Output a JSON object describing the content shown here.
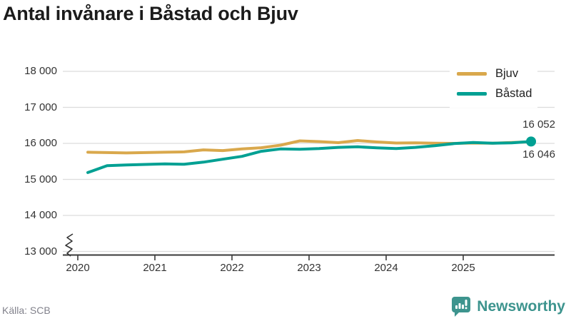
{
  "title": "Antal invånare i Båstad och Bjuv",
  "source": "Källa: SCB",
  "brand": {
    "name": "Newsworthy",
    "color": "#3d948e",
    "icon": "newsworthy-speech-bubble-chart-icon"
  },
  "colors": {
    "bjuv": "#d9a84c",
    "bastad": "#00a093",
    "grid": "#dcdcdc",
    "axis": "#3a3a3a",
    "text": "#333333",
    "title": "#1b1b1b",
    "source_text": "#82828c"
  },
  "chart_data": {
    "type": "line",
    "title": "Antal invånare i Båstad och Bjuv",
    "xlabel": "",
    "ylabel": "",
    "y_min": 13000,
    "y_max": 18000,
    "y_axis_break": true,
    "grid": "horizontal",
    "legend_position": "top-right",
    "y_tick_labels": [
      "13 000",
      "14 000",
      "15 000",
      "16 000",
      "17 000",
      "18 000"
    ],
    "y_tick_values": [
      13000,
      14000,
      15000,
      16000,
      17000,
      18000
    ],
    "x_tick_labels": [
      "2020",
      "2021",
      "2022",
      "2023",
      "2024",
      "2025"
    ],
    "x_tick_values": [
      2020,
      2021,
      2022,
      2023,
      2024,
      2025
    ],
    "x_start": 2020.13,
    "x_step": 0.25,
    "x_labels": [
      "2020 Q1",
      "2020 Q2",
      "2020 Q3",
      "2020 Q4",
      "2021 Q1",
      "2021 Q2",
      "2021 Q3",
      "2021 Q4",
      "2022 Q1",
      "2022 Q2",
      "2022 Q3",
      "2022 Q4",
      "2023 Q1",
      "2023 Q2",
      "2023 Q3",
      "2023 Q4",
      "2024 Q1",
      "2024 Q2",
      "2024 Q3",
      "2024 Q4",
      "2025 Q1",
      "2025 Q2",
      "2025 Q3",
      "2025 Q4"
    ],
    "series": [
      {
        "name": "Bjuv",
        "color": "#d9a84c",
        "end_dot": false,
        "end_value_label": "16 046",
        "values": [
          15755,
          15745,
          15735,
          15745,
          15755,
          15765,
          15820,
          15800,
          15845,
          15880,
          15950,
          16070,
          16050,
          16020,
          16080,
          16040,
          16010,
          16015,
          16005,
          16000,
          16010,
          16005,
          16025,
          16046
        ]
      },
      {
        "name": "Båstad",
        "color": "#00a093",
        "end_dot": true,
        "end_value_label": "16 052",
        "values": [
          15190,
          15380,
          15400,
          15415,
          15430,
          15420,
          15480,
          15560,
          15640,
          15780,
          15845,
          15835,
          15855,
          15890,
          15905,
          15875,
          15855,
          15890,
          15935,
          15995,
          16025,
          16005,
          16015,
          16052
        ]
      }
    ],
    "end_labels": {
      "top": "16 052",
      "bottom": "16 046"
    }
  }
}
